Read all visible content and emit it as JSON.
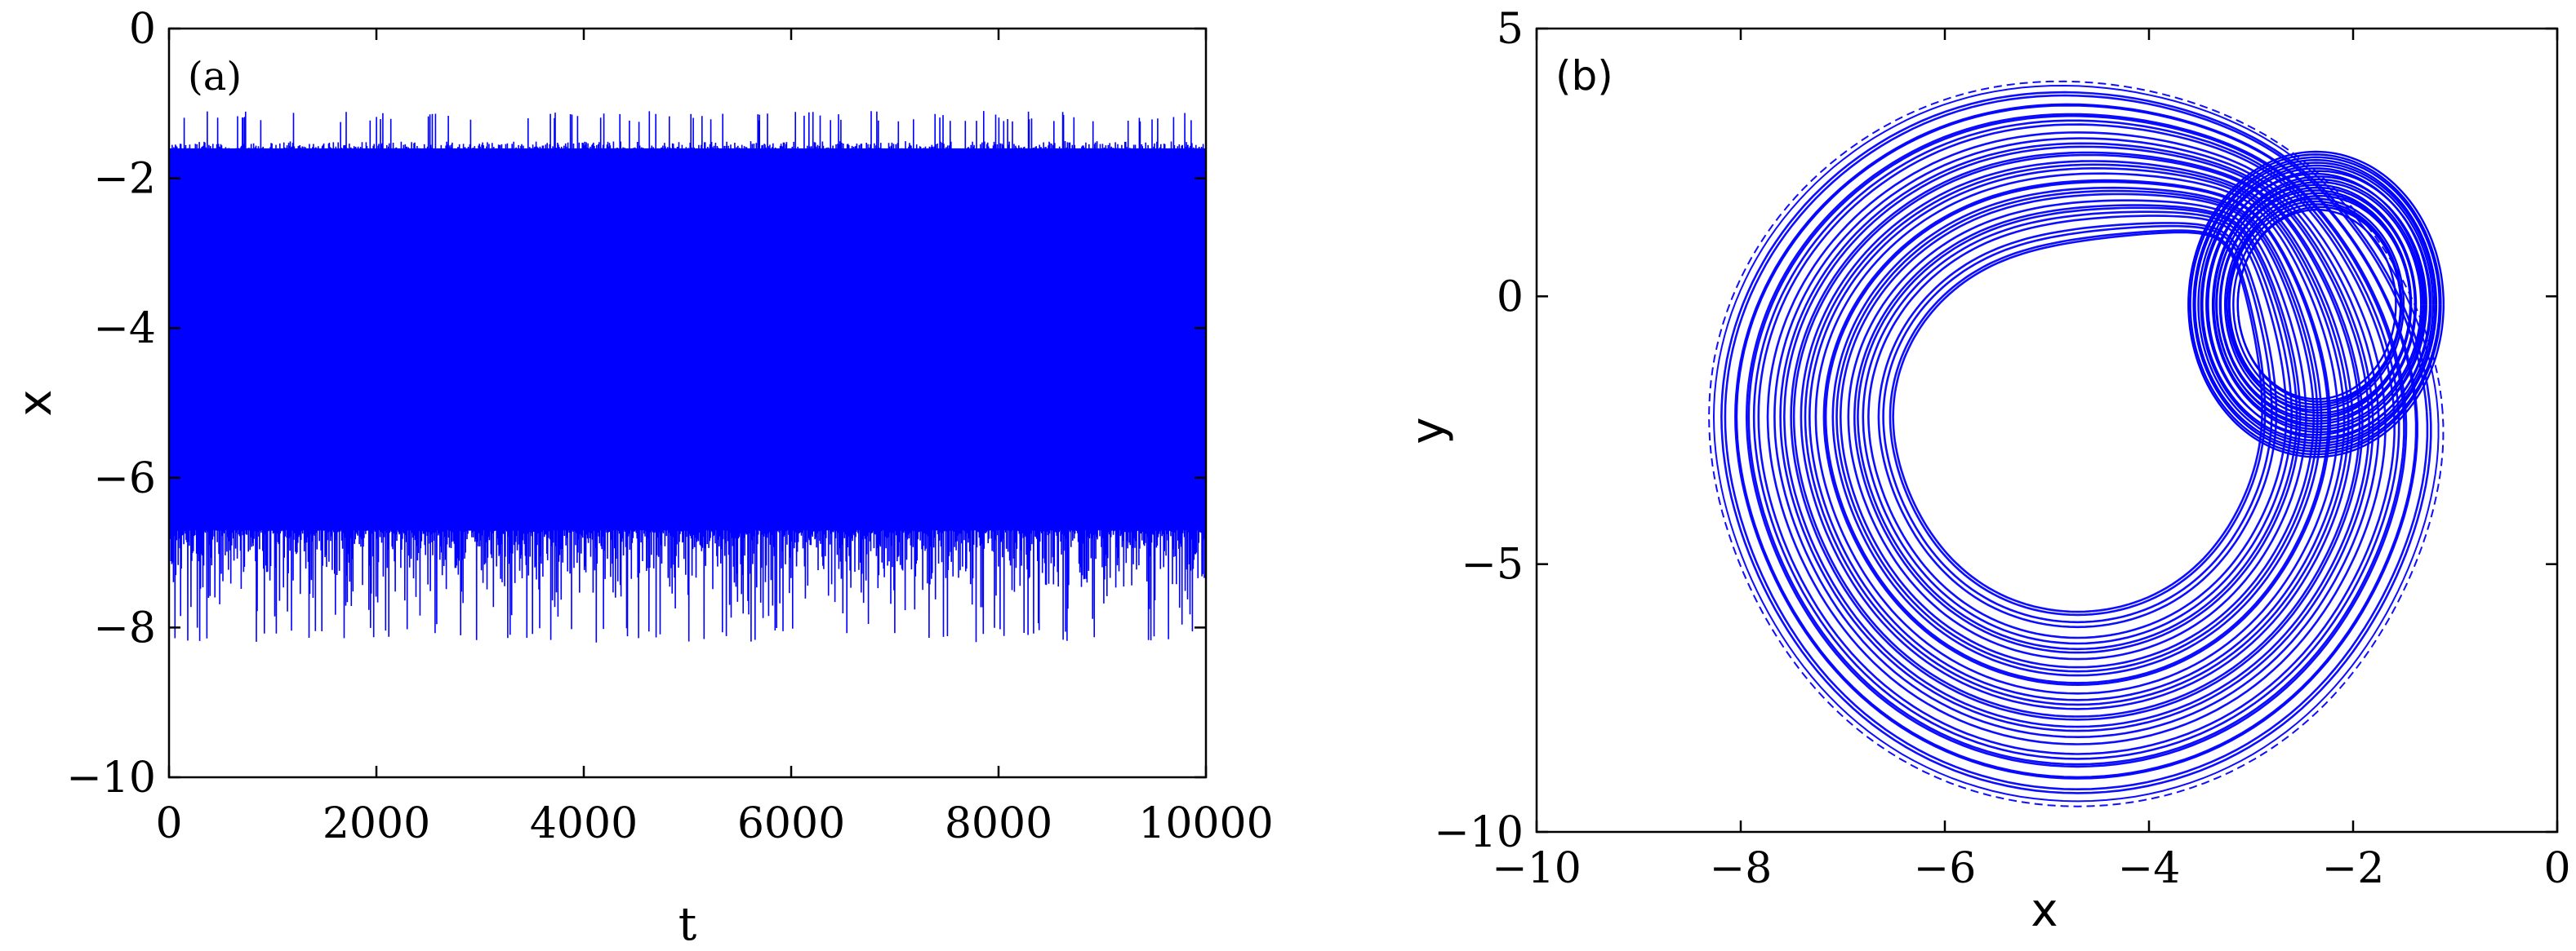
{
  "chart_data": [
    {
      "type": "line",
      "panel_label": "(a)",
      "xlabel": "t",
      "ylabel": "x",
      "xlim": [
        0,
        10000
      ],
      "ylim": [
        -10,
        0
      ],
      "xticks": [
        0,
        2000,
        4000,
        6000,
        8000,
        10000
      ],
      "xtick_labels": [
        "0",
        "2000",
        "4000",
        "6000",
        "8000",
        "10000"
      ],
      "yticks": [
        0,
        -2,
        -4,
        -6,
        -8,
        -10
      ],
      "ytick_labels": [
        "0",
        "−2",
        "−4",
        "−6",
        "−8",
        "−10"
      ],
      "series": [
        {
          "color": "#0000ff",
          "description_values": {
            "dense_band_min": -6.6,
            "dense_band_max": -1.6,
            "peak_max_approx": -1.1,
            "trough_min_approx": -8.2
          }
        }
      ],
      "grid": false
    },
    {
      "type": "line",
      "panel_label": "(b)",
      "xlabel": "x",
      "ylabel": "y",
      "xlim": [
        -10,
        0
      ],
      "ylim": [
        -10,
        5
      ],
      "xticks": [
        -10,
        -8,
        -6,
        -4,
        -2,
        0
      ],
      "xtick_labels": [
        "−10",
        "−8",
        "−6",
        "−4",
        "−2",
        "0"
      ],
      "yticks": [
        5,
        0,
        -5,
        -10
      ],
      "ytick_labels": [
        "5",
        "0",
        "−5",
        "−10"
      ],
      "series": [
        {
          "color": "#0000ff",
          "outer_lobe": {
            "x_range": [
              -8.3,
              -1.1
            ],
            "y_range": [
              -8.6,
              4.1
            ]
          },
          "inner_lobe": {
            "x_range": [
              -3.6,
              -1.1
            ],
            "y_range": [
              -3.0,
              2.7
            ]
          },
          "crossing_point": {
            "x": -2.8,
            "y": 2.5
          }
        }
      ],
      "grid": false
    }
  ]
}
